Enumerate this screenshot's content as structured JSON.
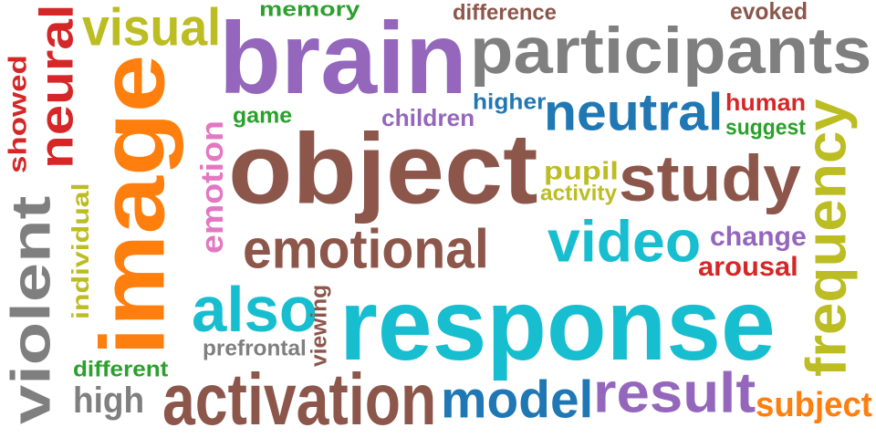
{
  "words": [
    {
      "text": "brain",
      "color": "#9467bd"
    },
    {
      "text": "participants",
      "color": "#7f7f7f"
    },
    {
      "text": "object",
      "color": "#8c564b"
    },
    {
      "text": "response",
      "color": "#17becf"
    },
    {
      "text": "image",
      "color": "#ff7f0e"
    },
    {
      "text": "activation",
      "color": "#8c564b"
    },
    {
      "text": "violent",
      "color": "#7f7f7f"
    },
    {
      "text": "neural",
      "color": "#d62728"
    },
    {
      "text": "visual",
      "color": "#bcbd22"
    },
    {
      "text": "study",
      "color": "#8c564b"
    },
    {
      "text": "neutral",
      "color": "#1f77b4"
    },
    {
      "text": "frequency",
      "color": "#bcbd22"
    },
    {
      "text": "emotional",
      "color": "#8c564b"
    },
    {
      "text": "video",
      "color": "#17becf"
    },
    {
      "text": "also",
      "color": "#17becf"
    },
    {
      "text": "result",
      "color": "#9467bd"
    },
    {
      "text": "model",
      "color": "#1f77b4"
    },
    {
      "text": "high",
      "color": "#7f7f7f"
    },
    {
      "text": "subject",
      "color": "#ff7f0e"
    },
    {
      "text": "emotion",
      "color": "#e377c2"
    },
    {
      "text": "individual",
      "color": "#bcbd22"
    },
    {
      "text": "showed",
      "color": "#d62728"
    },
    {
      "text": "memory",
      "color": "#2ca02c"
    },
    {
      "text": "difference",
      "color": "#8c564b"
    },
    {
      "text": "evoked",
      "color": "#8c564b"
    },
    {
      "text": "game",
      "color": "#2ca02c"
    },
    {
      "text": "children",
      "color": "#9467bd"
    },
    {
      "text": "higher",
      "color": "#1f77b4"
    },
    {
      "text": "human",
      "color": "#d62728"
    },
    {
      "text": "suggest",
      "color": "#2ca02c"
    },
    {
      "text": "pupil",
      "color": "#bcbd22"
    },
    {
      "text": "activity",
      "color": "#bcbd22"
    },
    {
      "text": "change",
      "color": "#9467bd"
    },
    {
      "text": "arousal",
      "color": "#d62728"
    },
    {
      "text": "prefrontal",
      "color": "#7f7f7f"
    },
    {
      "text": "viewing",
      "color": "#8c564b"
    },
    {
      "text": "different",
      "color": "#2ca02c"
    }
  ]
}
